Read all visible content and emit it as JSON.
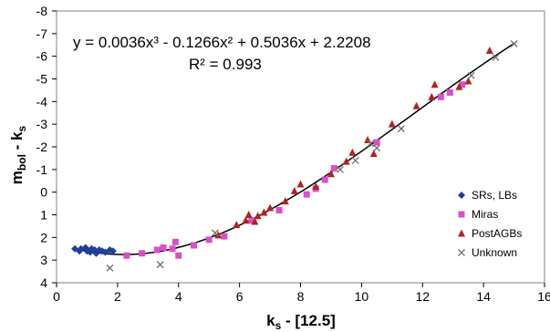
{
  "chart_data": {
    "type": "scatter",
    "xlabel": {
      "main": "k",
      "sub": "s",
      "tail": " - [12.5]"
    },
    "ylabel": {
      "main": "m",
      "sub1": "bol",
      "mid": " - k",
      "sub2": "s"
    },
    "xlim": [
      0,
      16
    ],
    "ylim": [
      4,
      -8
    ],
    "y_axis_inverted": true,
    "x_ticks": [
      0,
      2,
      4,
      6,
      8,
      10,
      12,
      14,
      16
    ],
    "y_ticks": [
      -8,
      -7,
      -6,
      -5,
      -4,
      -3,
      -2,
      -1,
      0,
      1,
      2,
      3,
      4
    ],
    "grid": false,
    "legend_position": "lower-right",
    "equation": "y = 0.0036x³ - 0.1266x² + 0.5036x + 2.2208",
    "r_squared": "R² = 0.993",
    "trendline": {
      "a3": 0.0036,
      "a2": -0.1266,
      "a1": 0.5036,
      "a0": 2.2208,
      "x_start": 0.6,
      "x_end": 15.0,
      "color": "#000000"
    },
    "series": [
      {
        "name": "SRs, LBs",
        "marker": "diamond",
        "color": "#1f3f9a",
        "points": [
          [
            0.6,
            2.5
          ],
          [
            0.75,
            2.6
          ],
          [
            0.8,
            2.5
          ],
          [
            0.95,
            2.45
          ],
          [
            1.0,
            2.6
          ],
          [
            1.1,
            2.65
          ],
          [
            1.15,
            2.5
          ],
          [
            1.25,
            2.55
          ],
          [
            1.3,
            2.7
          ],
          [
            1.4,
            2.55
          ],
          [
            1.5,
            2.6
          ],
          [
            1.6,
            2.65
          ],
          [
            1.75,
            2.55
          ],
          [
            1.85,
            2.6
          ]
        ]
      },
      {
        "name": "Miras",
        "marker": "square",
        "color": "#d84fc8",
        "points": [
          [
            2.3,
            2.8
          ],
          [
            2.8,
            2.7
          ],
          [
            3.3,
            2.55
          ],
          [
            3.5,
            2.45
          ],
          [
            3.8,
            2.5
          ],
          [
            3.9,
            2.2
          ],
          [
            4.0,
            2.8
          ],
          [
            4.5,
            2.35
          ],
          [
            5.0,
            2.1
          ],
          [
            5.5,
            1.95
          ],
          [
            6.4,
            1.25
          ],
          [
            7.3,
            0.8
          ],
          [
            8.2,
            0.1
          ],
          [
            8.5,
            -0.15
          ],
          [
            8.8,
            -0.55
          ],
          [
            9.1,
            -1.05
          ],
          [
            10.5,
            -2.2
          ],
          [
            12.6,
            -4.2
          ],
          [
            12.9,
            -4.4
          ],
          [
            13.3,
            -4.75
          ]
        ]
      },
      {
        "name": "PostAGBs",
        "marker": "triangle",
        "color": "#b22222",
        "points": [
          [
            5.3,
            1.9
          ],
          [
            5.9,
            1.45
          ],
          [
            6.2,
            1.25
          ],
          [
            6.3,
            1.0
          ],
          [
            6.5,
            1.3
          ],
          [
            6.6,
            1.05
          ],
          [
            6.8,
            0.9
          ],
          [
            7.0,
            0.7
          ],
          [
            7.5,
            0.4
          ],
          [
            7.8,
            -0.05
          ],
          [
            8.0,
            -0.35
          ],
          [
            8.5,
            -0.25
          ],
          [
            9.0,
            -0.8
          ],
          [
            9.5,
            -1.35
          ],
          [
            9.7,
            -1.75
          ],
          [
            10.2,
            -2.3
          ],
          [
            10.4,
            -1.7
          ],
          [
            11.0,
            -3.0
          ],
          [
            11.8,
            -3.8
          ],
          [
            12.3,
            -4.2
          ],
          [
            12.4,
            -4.75
          ],
          [
            13.2,
            -4.65
          ],
          [
            13.5,
            -4.9
          ],
          [
            14.2,
            -6.25
          ]
        ]
      },
      {
        "name": "Unknown",
        "marker": "x",
        "color": "#707070",
        "points": [
          [
            1.75,
            3.35
          ],
          [
            3.4,
            3.2
          ],
          [
            5.2,
            1.8
          ],
          [
            9.3,
            -1.0
          ],
          [
            9.8,
            -1.4
          ],
          [
            10.3,
            -2.15
          ],
          [
            10.5,
            -1.95
          ],
          [
            11.3,
            -2.8
          ],
          [
            13.6,
            -5.15
          ],
          [
            14.4,
            -5.95
          ],
          [
            15.0,
            -6.55
          ]
        ]
      }
    ]
  }
}
